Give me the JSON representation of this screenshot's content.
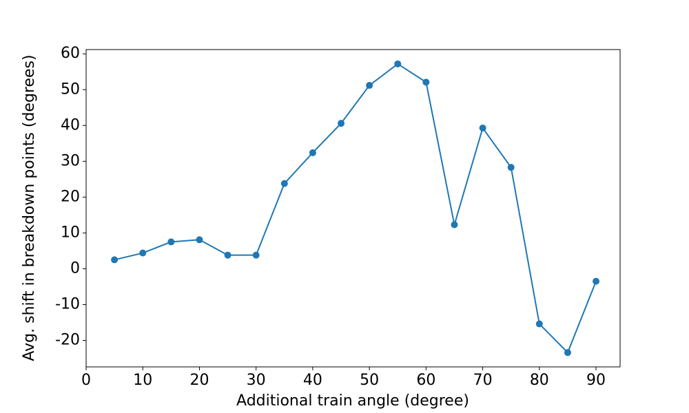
{
  "chart_data": {
    "type": "line",
    "x_label": "Additional train angle (degree)",
    "y_label": "Avg. shift in breakdown points (degrees)",
    "x": [
      5,
      10,
      15,
      20,
      25,
      30,
      35,
      40,
      45,
      50,
      55,
      60,
      65,
      70,
      75,
      80,
      85,
      90
    ],
    "series": [
      {
        "color": "#1f77b4",
        "values": [
          2.5,
          4.4,
          7.5,
          8.1,
          3.8,
          3.8,
          23.8,
          32.4,
          40.6,
          51.2,
          57.2,
          52.1,
          12.3,
          39.3,
          28.3,
          -15.4,
          -23.4,
          -3.5
        ]
      }
    ],
    "xlim": [
      0,
      94.25
    ],
    "xticks": [
      0,
      10,
      20,
      30,
      40,
      50,
      60,
      70,
      80,
      90
    ],
    "ylim": [
      -27.4,
      61.2
    ],
    "yticks": [
      -20,
      -10,
      0,
      10,
      20,
      30,
      40,
      50,
      60
    ]
  }
}
